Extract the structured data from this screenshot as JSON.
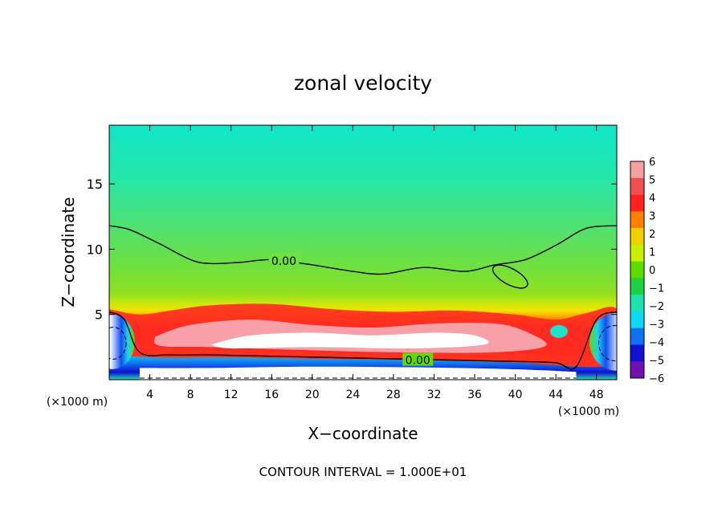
{
  "chart_data": {
    "type": "heatmap",
    "title": "zonal velocity",
    "xlabel": "X−coordinate",
    "ylabel": "Z−coordinate",
    "x_unit": "(×1000 m)",
    "y_unit": "(×1000 m)",
    "xlim": [
      0,
      50
    ],
    "ylim": [
      0,
      19.5
    ],
    "x_ticks": [
      4,
      8,
      12,
      16,
      20,
      24,
      28,
      32,
      36,
      40,
      44,
      48
    ],
    "y_ticks": [
      5,
      10,
      15
    ],
    "footer": "CONTOUR INTERVAL = 1.000E+01",
    "colorbar": {
      "labels": [
        "6",
        "5",
        "4",
        "3",
        "2",
        "1",
        "0",
        "−1",
        "−2",
        "−3",
        "−4",
        "−5",
        "−6"
      ],
      "colors": [
        "#f4a0a0",
        "#f05050",
        "#ff2020",
        "#ff8000",
        "#f0d000",
        "#c8f000",
        "#60dc00",
        "#20d040",
        "#20e0b0",
        "#10d8f0",
        "#1070f0",
        "#1010d0",
        "#7010b0"
      ]
    },
    "contours": [
      {
        "label": "0.00",
        "label_x": 17.2,
        "label_z": 9.1,
        "x": [
          0,
          2,
          5,
          8,
          10,
          13,
          16,
          20,
          24,
          27,
          31,
          35,
          38,
          41,
          44,
          47,
          50
        ],
        "z": [
          11.8,
          11.5,
          10.4,
          9.2,
          8.9,
          9.0,
          9.2,
          8.8,
          8.3,
          8.1,
          8.6,
          8.3,
          8.8,
          9.2,
          10.3,
          11.6,
          11.8
        ]
      },
      {
        "label": "0.00",
        "label_x": 30.4,
        "label_z": 1.5,
        "x": [
          0,
          1.5,
          3,
          6,
          10,
          16,
          22,
          28,
          34,
          40,
          44,
          46,
          48,
          50
        ],
        "z": [
          5.2,
          4.6,
          2.1,
          1.9,
          1.9,
          1.8,
          1.7,
          1.6,
          1.5,
          1.4,
          1.3,
          1.0,
          4.6,
          5.2
        ]
      }
    ]
  }
}
